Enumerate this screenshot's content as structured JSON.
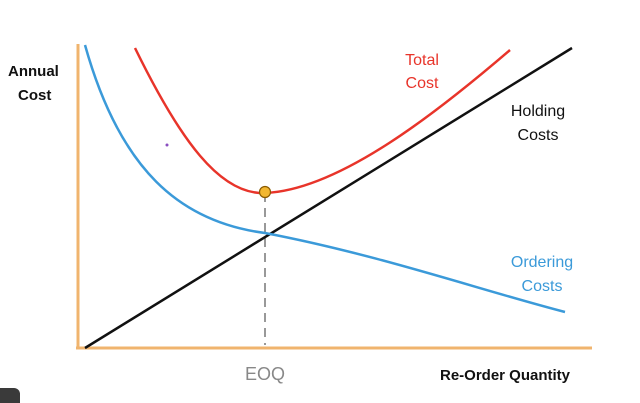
{
  "axes": {
    "y_label": [
      "Annual",
      "Cost"
    ],
    "x_label": "Re-Order Quantity"
  },
  "curves": [
    {
      "label": [
        "Total",
        "Cost"
      ]
    },
    {
      "label": [
        "Holding",
        "Costs"
      ]
    },
    {
      "label": [
        "Ordering",
        "Costs"
      ]
    }
  ],
  "marker": "EOQ"
}
